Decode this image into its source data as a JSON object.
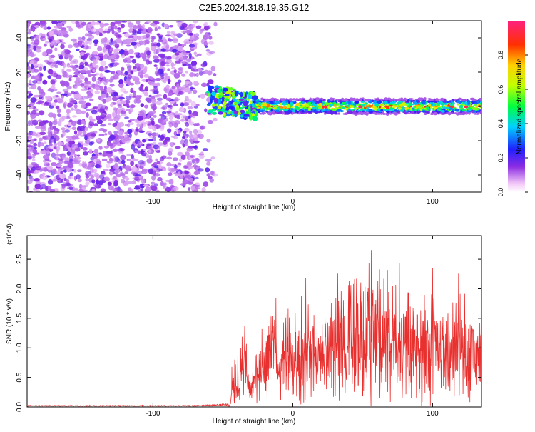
{
  "figure": {
    "title": "C2E5.2024.318.19.35.G12"
  },
  "chart_data": [
    {
      "type": "heatmap",
      "title": "C2E5.2024.318.19.35.G12",
      "xlabel": "Height of straight line (km)",
      "ylabel": "Frequency (Hz)",
      "xlim": [
        -190,
        135
      ],
      "ylim": [
        -50,
        50
      ],
      "xticks": [
        -100,
        0,
        100
      ],
      "xtick_labels": [
        "-100",
        "0",
        "100"
      ],
      "yticks": [
        -40,
        -20,
        0,
        20,
        40
      ],
      "ytick_labels": [
        "-40",
        "-20",
        "0",
        "20",
        "40"
      ],
      "colorbar": {
        "label": "Normalized spectral amplitude",
        "range": [
          0,
          1
        ],
        "ticks": [
          0.0,
          0.2,
          0.4,
          0.6,
          0.8
        ],
        "tick_labels": [
          "0.0",
          "0.2",
          "0.4",
          "0.6",
          "0.8"
        ]
      },
      "regions": [
        {
          "x_start": -190,
          "x_end": -60,
          "frequency": "broadband noise",
          "amplitude": 0.15
        },
        {
          "x_start": -60,
          "x_end": -25,
          "frequency": "0 to 10 Hz",
          "amplitude": 0.4
        },
        {
          "x_start": -25,
          "x_end": 135,
          "frequency": "near 0 Hz",
          "amplitude": 0.9
        }
      ],
      "grid": false
    },
    {
      "type": "line",
      "xlabel": "Height of straight line (km)",
      "ylabel": "SNR (10 * v/v)",
      "y_multiplier": "(x10^4)",
      "xlim": [
        -190,
        135
      ],
      "ylim": [
        0,
        2.9
      ],
      "xticks": [
        -100,
        0,
        100
      ],
      "xtick_labels": [
        "-100",
        "0",
        "100"
      ],
      "yticks": [
        0.0,
        0.5,
        1.0,
        1.5,
        2.0,
        2.5
      ],
      "ytick_labels": [
        "0.0",
        "0.5",
        "1.0",
        "1.5",
        "2.0",
        "2.5"
      ],
      "series": [
        {
          "color": "#e8302f",
          "x": [
            -190,
            -150,
            -110,
            -70,
            -45,
            -42,
            -40,
            -35,
            -30,
            -25,
            -20,
            -15,
            -10,
            -5,
            0,
            5,
            10,
            20,
            30,
            40,
            50,
            60,
            70,
            80,
            90,
            100,
            110,
            120,
            130,
            135
          ],
          "y": [
            0.02,
            0.02,
            0.02,
            0.02,
            0.04,
            1.2,
            0.7,
            1.5,
            0.5,
            1.2,
            0.9,
            2.3,
            1.0,
            1.8,
            1.3,
            1.6,
            1.8,
            1.5,
            2.0,
            2.2,
            2.4,
            2.6,
            2.2,
            2.0,
            1.9,
            2.1,
            1.6,
            2.0,
            1.7,
            1.5
          ]
        }
      ],
      "grid": false
    }
  ]
}
